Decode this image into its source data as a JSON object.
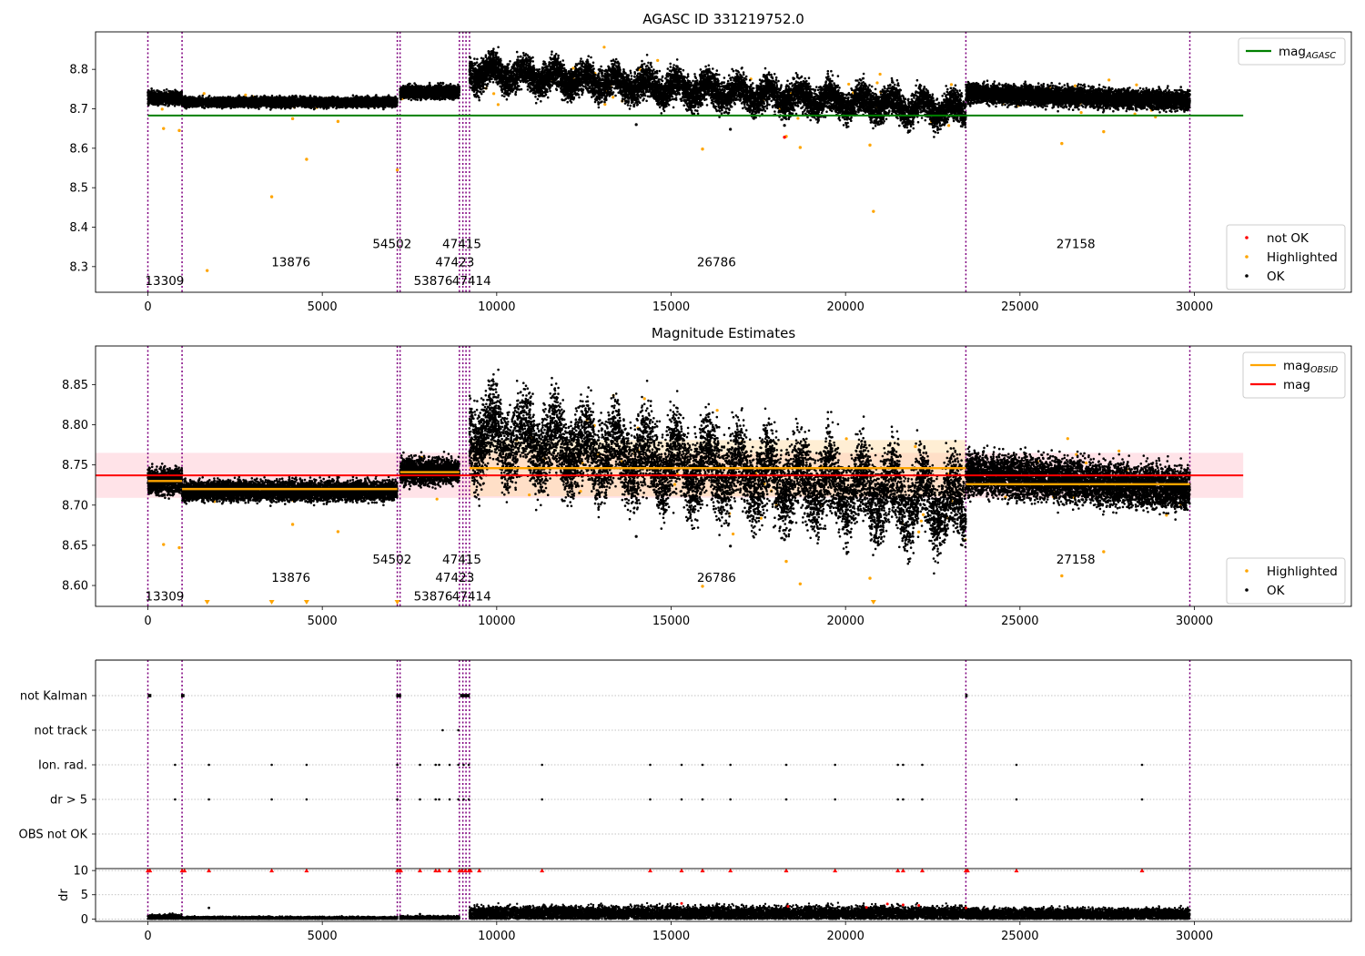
{
  "chart_data": [
    {
      "type": "scatter",
      "title": "AGASC ID 331219752.0",
      "xlim": [
        -1500,
        34500
      ],
      "ylim": [
        8.235,
        8.895
      ],
      "x_ticks": [
        0,
        5000,
        10000,
        15000,
        20000,
        25000,
        30000
      ],
      "y_ticks": [
        8.3,
        8.4,
        8.5,
        8.6,
        8.7,
        8.8
      ],
      "obsid_boundaries": [
        0,
        980,
        7150,
        7230,
        8930,
        9030,
        9120,
        9220,
        23450,
        29870
      ],
      "reference_line": {
        "label": "mag",
        "label_sub": "AGASC",
        "value": 8.683,
        "x_range": [
          0,
          31400
        ],
        "color": "#008000"
      },
      "segments": [
        {
          "x": [
            0,
            980
          ],
          "level": 8.728,
          "spread": 0.008
        },
        {
          "x": [
            980,
            7150
          ],
          "level": 8.717,
          "spread": 0.006
        },
        {
          "x": [
            7230,
            8930
          ],
          "level": 8.743,
          "spread": 0.008
        },
        {
          "x": [
            9220,
            23450
          ],
          "level": [
            8.795,
            8.695
          ],
          "spread": 0.02
        },
        {
          "x": [
            23450,
            29870
          ],
          "level": [
            8.74,
            8.72
          ],
          "spread": 0.012
        }
      ],
      "highlighted_outliers": [
        [
          450,
          8.65
        ],
        [
          900,
          8.645
        ],
        [
          1700,
          8.29
        ],
        [
          3550,
          8.477
        ],
        [
          4150,
          8.675
        ],
        [
          4550,
          8.572
        ],
        [
          5450,
          8.668
        ],
        [
          7150,
          8.545
        ],
        [
          15900,
          8.598
        ],
        [
          18300,
          8.63
        ],
        [
          18700,
          8.602
        ],
        [
          20700,
          8.608
        ],
        [
          20800,
          8.44
        ],
        [
          26200,
          8.612
        ],
        [
          27400,
          8.642
        ]
      ],
      "ok_outliers": [
        [
          14000,
          8.66
        ],
        [
          16700,
          8.648
        ],
        [
          18250,
          8.658
        ]
      ],
      "notok_outliers": [
        [
          18250,
          8.628
        ]
      ],
      "obsid_labels": [
        {
          "text": "13309",
          "x": 480,
          "y": 8.265
        },
        {
          "text": "13876",
          "x": 4100,
          "y": 8.312
        },
        {
          "text": "54502",
          "x": 7000,
          "y": 8.358
        },
        {
          "text": "53876",
          "x": 8180,
          "y": 8.265
        },
        {
          "text": "47414",
          "x": 9280,
          "y": 8.265
        },
        {
          "text": "47423",
          "x": 8800,
          "y": 8.312
        },
        {
          "text": "47415",
          "x": 9000,
          "y": 8.358
        },
        {
          "text": "26786",
          "x": 16300,
          "y": 8.312
        },
        {
          "text": "27158",
          "x": 26600,
          "y": 8.358
        }
      ],
      "legend_top": [
        {
          "label": "mag",
          "label_sub": "AGASC",
          "color": "#008000",
          "kind": "line"
        }
      ],
      "legend_bottom": [
        {
          "label": "not OK",
          "color": "#ff0000",
          "kind": "dot"
        },
        {
          "label": "Highlighted",
          "color": "#ffa500",
          "kind": "dot"
        },
        {
          "label": "OK",
          "color": "#000000",
          "kind": "dot"
        }
      ]
    },
    {
      "type": "scatter",
      "title": "Magnitude Estimates",
      "xlim": [
        -1500,
        34500
      ],
      "ylim": [
        8.574,
        8.898
      ],
      "x_ticks": [
        0,
        5000,
        10000,
        15000,
        20000,
        25000,
        30000
      ],
      "y_ticks": [
        8.6,
        8.65,
        8.7,
        8.75,
        8.8,
        8.85
      ],
      "y_tick_labels": [
        "8.60",
        "8.65",
        "8.70",
        "8.75",
        "8.80",
        "8.85"
      ],
      "obsid_boundaries": [
        0,
        980,
        7150,
        7230,
        8930,
        9030,
        9120,
        9220,
        23450,
        29870
      ],
      "mag_line": {
        "label": "mag",
        "value": 8.737,
        "band": [
          8.709,
          8.765
        ],
        "x_range": [
          -1500,
          31400
        ],
        "color": "#ff0000"
      },
      "obsid_mags": [
        {
          "x": [
            0,
            980
          ],
          "value": 8.73
        },
        {
          "x": [
            980,
            7150
          ],
          "value": 8.72
        },
        {
          "x": [
            7230,
            8930
          ],
          "value": 8.741
        },
        {
          "x": [
            9220,
            23450
          ],
          "value": 8.746,
          "band": [
            8.711,
            8.781
          ]
        },
        {
          "x": [
            23450,
            29870
          ],
          "value": 8.726
        }
      ],
      "segments": [
        {
          "x": [
            0,
            980
          ],
          "level": 8.73,
          "spread": 0.008
        },
        {
          "x": [
            980,
            7150
          ],
          "level": 8.718,
          "spread": 0.006
        },
        {
          "x": [
            7230,
            8930
          ],
          "level": 8.742,
          "spread": 0.008
        },
        {
          "x": [
            9220,
            23450
          ],
          "level": [
            8.79,
            8.7
          ],
          "spread": 0.025
        },
        {
          "x": [
            23450,
            29870
          ],
          "level": [
            8.74,
            8.72
          ],
          "spread": 0.013
        }
      ],
      "highlighted_outliers": [
        [
          450,
          8.651
        ],
        [
          900,
          8.647
        ],
        [
          4150,
          8.676
        ],
        [
          5450,
          8.667
        ],
        [
          15900,
          8.599
        ],
        [
          18300,
          8.63
        ],
        [
          18700,
          8.602
        ],
        [
          20700,
          8.609
        ],
        [
          26200,
          8.612
        ],
        [
          27400,
          8.642
        ]
      ],
      "clipped_markers_x": [
        1700,
        3550,
        4550,
        7150,
        20800
      ],
      "ok_outliers": [
        [
          14000,
          8.661
        ],
        [
          16700,
          8.649
        ],
        [
          18250,
          8.657
        ]
      ],
      "obsid_labels": [
        {
          "text": "13309",
          "x": 480,
          "y": 8.587
        },
        {
          "text": "13876",
          "x": 4100,
          "y": 8.61
        },
        {
          "text": "54502",
          "x": 7000,
          "y": 8.633
        },
        {
          "text": "53876",
          "x": 8180,
          "y": 8.587
        },
        {
          "text": "47414",
          "x": 9280,
          "y": 8.587
        },
        {
          "text": "47423",
          "x": 8800,
          "y": 8.61
        },
        {
          "text": "47415",
          "x": 9000,
          "y": 8.633
        },
        {
          "text": "26786",
          "x": 16300,
          "y": 8.61
        },
        {
          "text": "27158",
          "x": 26600,
          "y": 8.633
        }
      ],
      "legend_top": [
        {
          "label": "mag",
          "label_sub": "OBSID",
          "color": "#ffa500",
          "kind": "line"
        },
        {
          "label": "mag",
          "color": "#ff0000",
          "kind": "line"
        }
      ],
      "legend_bottom": [
        {
          "label": "Highlighted",
          "color": "#ffa500",
          "kind": "dot"
        },
        {
          "label": "OK",
          "color": "#000000",
          "kind": "dot"
        }
      ]
    },
    {
      "type": "scatter",
      "xlim": [
        -1500,
        34500
      ],
      "categories": [
        "not Kalman",
        "not track",
        "Ion. rad.",
        "dr > 5",
        "OBS not OK"
      ],
      "flags": {
        "not Kalman": {
          "ranges": [
            [
              0,
              100
            ],
            [
              950,
              1050
            ],
            [
              7120,
              7260
            ],
            [
              8950,
              9230
            ],
            [
              23430,
              23500
            ]
          ],
          "points": []
        },
        "not track": {
          "ranges": [],
          "points": [
            8450,
            8900
          ]
        },
        "Ion. rad.": {
          "ranges": [],
          "points": [
            780,
            1750,
            3550,
            4550,
            7150,
            7800,
            8250,
            8350,
            8650,
            8900,
            9050,
            9200,
            11300,
            14400,
            15300,
            15900,
            16700,
            18300,
            19700,
            21500,
            21650,
            22200,
            24900,
            28500
          ]
        },
        "dr > 5": {
          "ranges": [],
          "points": [
            780,
            1750,
            3550,
            4550,
            7150,
            7800,
            8250,
            8350,
            8650,
            8900,
            9050,
            9200,
            11300,
            14400,
            15300,
            15900,
            16700,
            18300,
            19700,
            21500,
            21650,
            22200,
            24900,
            28500
          ]
        },
        "OBS not OK": {
          "ranges": [],
          "points": []
        }
      },
      "obsid_boundaries": [
        0,
        980,
        7150,
        7230,
        8930,
        9030,
        9120,
        9220,
        23450,
        29870
      ]
    },
    {
      "type": "scatter",
      "ylabel": "dr",
      "xlim": [
        -1500,
        34500
      ],
      "ylim": [
        -0.5,
        10.4
      ],
      "x_ticks": [
        0,
        5000,
        10000,
        15000,
        20000,
        25000,
        30000
      ],
      "y_ticks": [
        0,
        5,
        10
      ],
      "capped_value": 10,
      "capped_points": [
        0,
        60,
        980,
        1050,
        1750,
        3550,
        4550,
        7150,
        7200,
        7250,
        7800,
        8250,
        8350,
        8650,
        8930,
        9000,
        9100,
        9200,
        9250,
        9500,
        11300,
        14400,
        15300,
        15900,
        16700,
        18300,
        19700,
        21500,
        21650,
        22200,
        23450,
        23500,
        24900,
        28500
      ],
      "segments": [
        {
          "x": [
            0,
            980
          ],
          "level": 0.3,
          "spread": 0.3
        },
        {
          "x": [
            980,
            7150
          ],
          "level": 0.15,
          "spread": 0.15
        },
        {
          "x": [
            7230,
            8930
          ],
          "level": 0.2,
          "spread": 0.2
        },
        {
          "x": [
            9220,
            23450
          ],
          "level": 1.2,
          "spread": 0.7
        },
        {
          "x": [
            23450,
            29870
          ],
          "level": 1.0,
          "spread": 0.6
        }
      ],
      "red_points": [
        [
          15300,
          3.2
        ],
        [
          18350,
          2.6
        ],
        [
          20600,
          2.4
        ],
        [
          21200,
          3.1
        ],
        [
          21650,
          2.9
        ],
        [
          22100,
          2.8
        ],
        [
          23450,
          2.3
        ]
      ],
      "obsid_boundaries": [
        0,
        980,
        7150,
        7230,
        8930,
        9030,
        9120,
        9220,
        23450,
        29870
      ]
    }
  ],
  "colors": {
    "ok": "#000000",
    "highlighted": "#ffa500",
    "not_ok": "#ff0000",
    "boundary": "#800080",
    "agasc": "#008000",
    "mag": "#ff0000",
    "mag_obsid": "#ffa500",
    "band": "#ffc0cb"
  }
}
